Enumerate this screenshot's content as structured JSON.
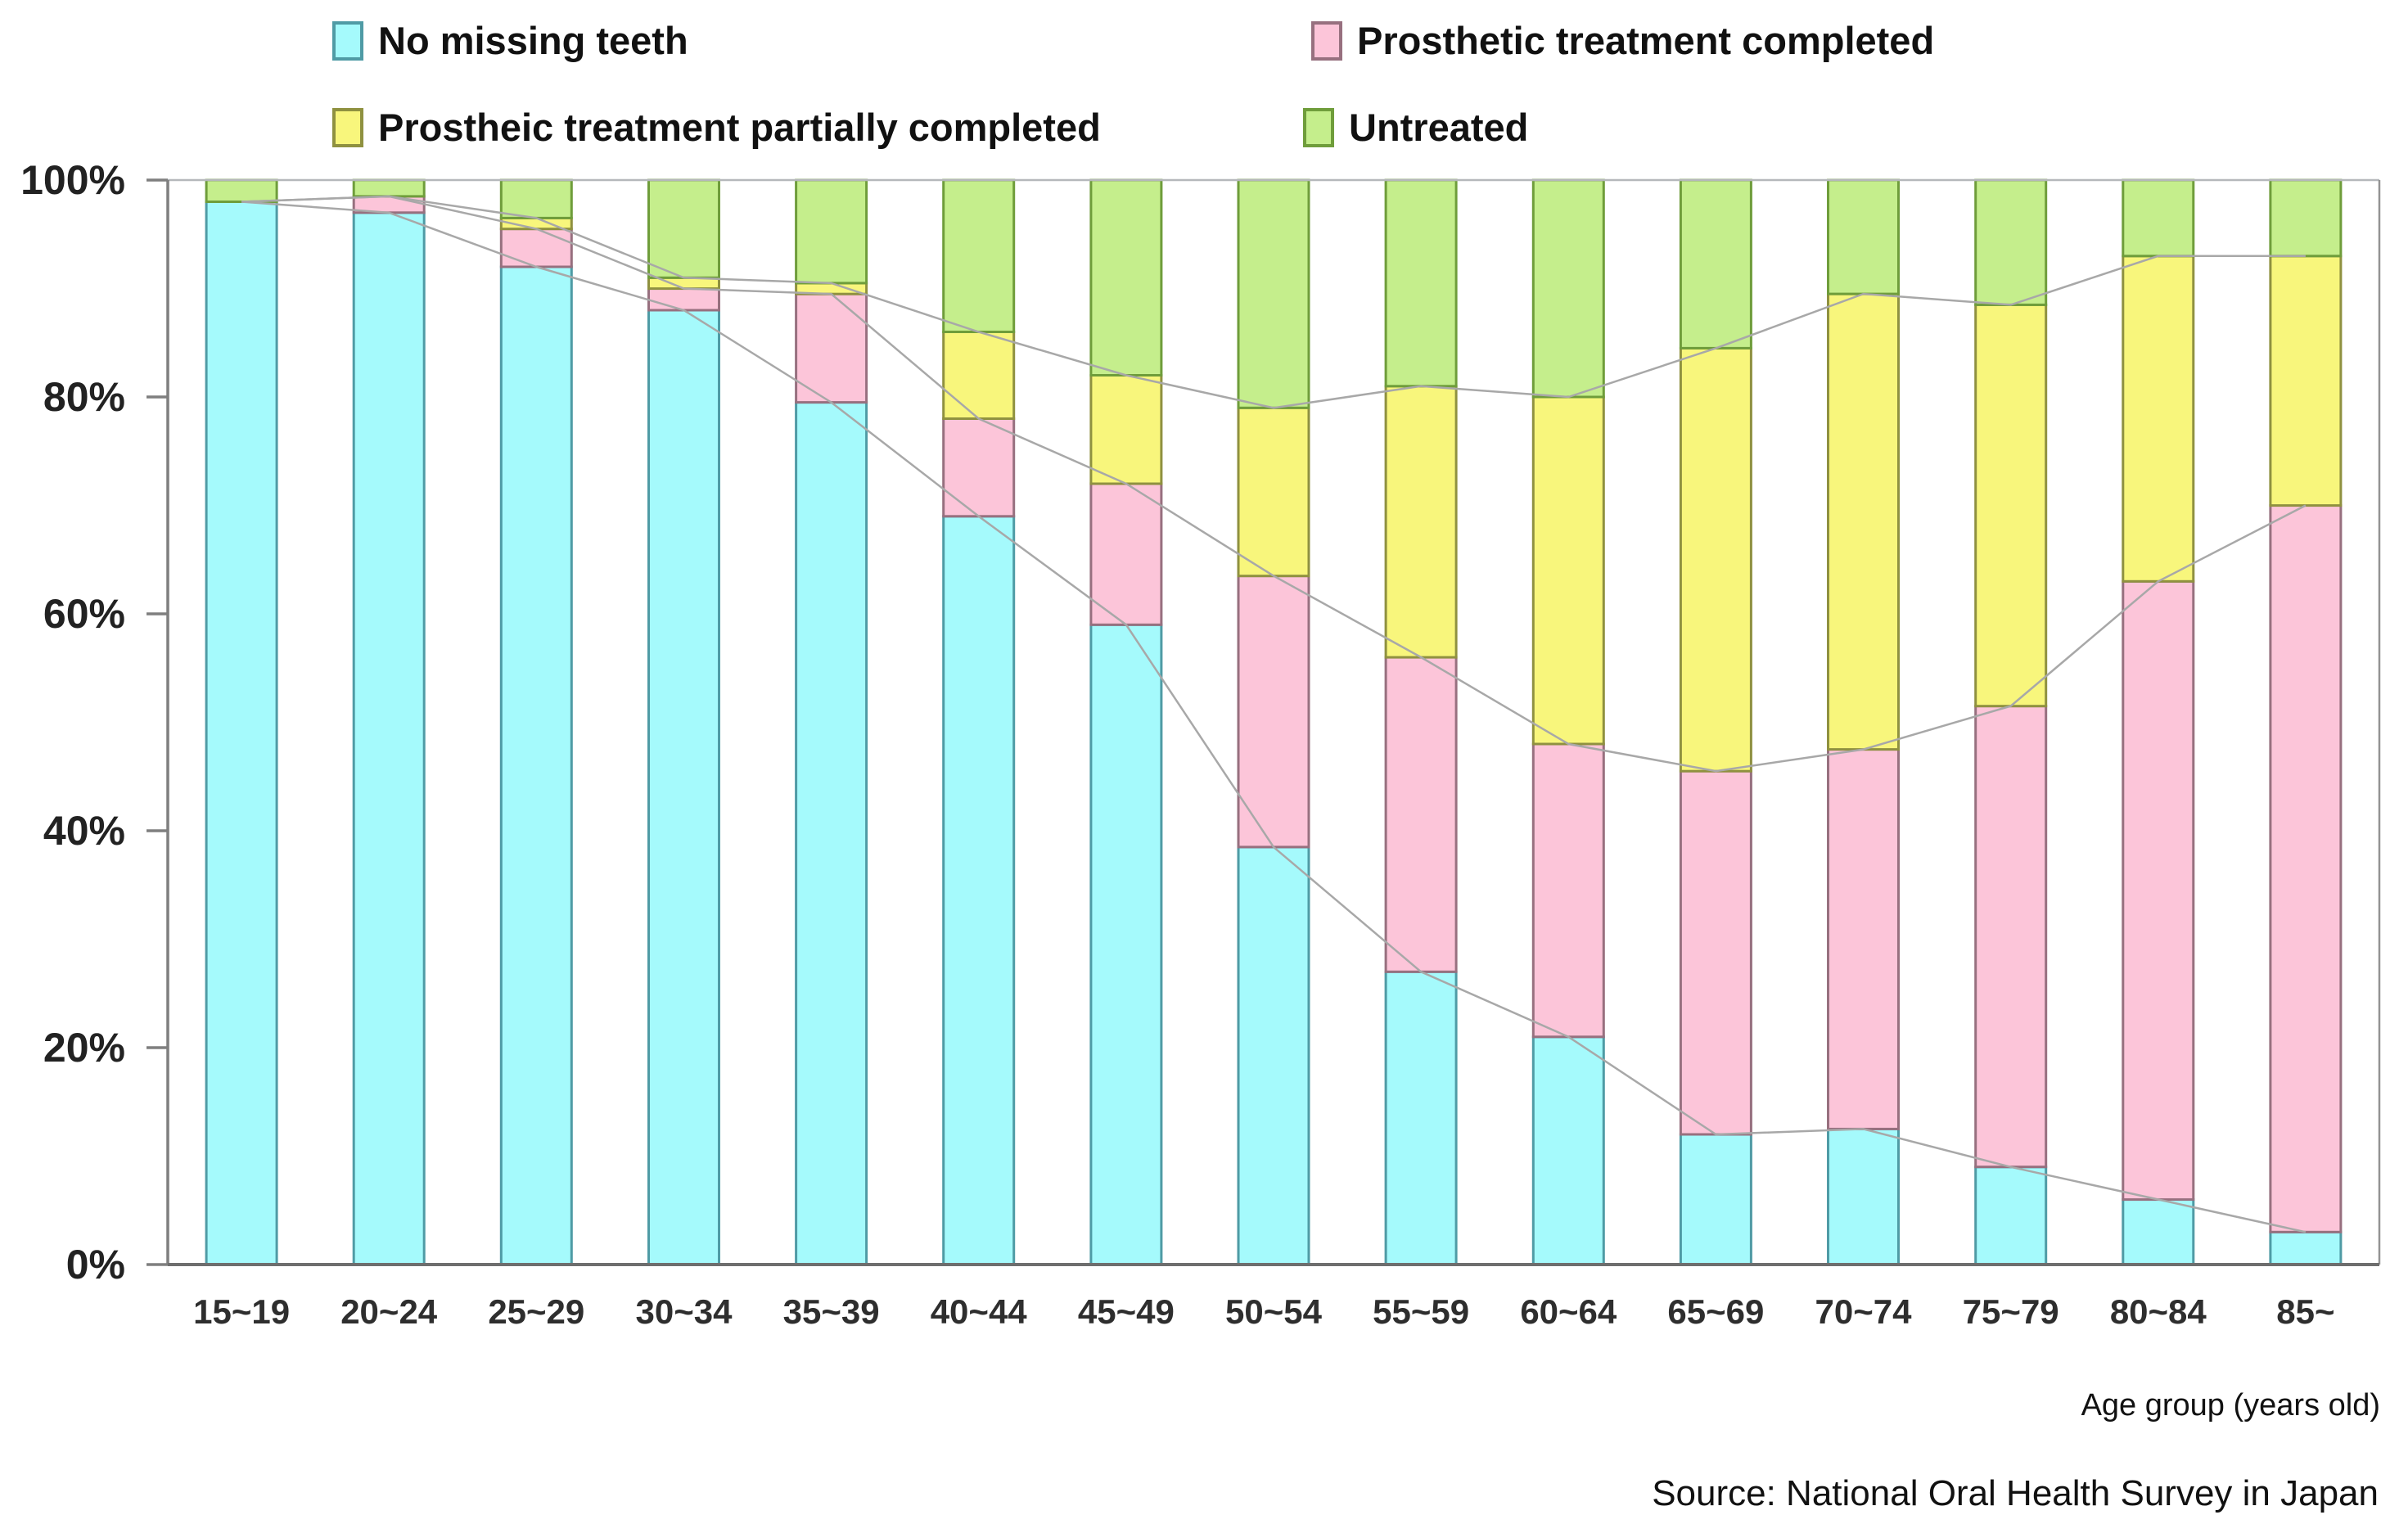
{
  "figure": {
    "background": "#ffffff",
    "text_color": "#111111",
    "axis_color": "#7f7f7f",
    "bottom_axis_color": "#6e6e6e",
    "frame_top_color": "#b5b8bb",
    "frame_right_color": "#939393",
    "connector_color": "#a8a8a8"
  },
  "chart_data": {
    "type": "bar",
    "stacked": true,
    "legend_position": "top",
    "grid": false,
    "connector_lines": true,
    "categories": [
      "15~19",
      "20~24",
      "25~29",
      "30~34",
      "35~39",
      "40~44",
      "45~49",
      "50~54",
      "55~59",
      "60~64",
      "65~69",
      "70~74",
      "75~79",
      "80~84",
      "85~"
    ],
    "series": [
      {
        "name": "No missing teeth",
        "color": "#a5fafc",
        "border": "#4f9ba5",
        "values": [
          98,
          97,
          92,
          88,
          79.5,
          69,
          59,
          38.5,
          27,
          21,
          12,
          12.5,
          9,
          6,
          3
        ]
      },
      {
        "name": "Prosthetic treatment completed",
        "color": "#fcc5d9",
        "border": "#97707f",
        "values": [
          0,
          1.5,
          3.5,
          2,
          10,
          9,
          13,
          25,
          29,
          27,
          33.5,
          35,
          42.5,
          57,
          67
        ]
      },
      {
        "name": "Prostheic treatment partially completed",
        "color": "#f8f67c",
        "border": "#8f9140",
        "values": [
          0,
          0,
          1,
          1,
          1,
          8,
          10,
          15.5,
          25,
          32,
          39,
          42,
          37,
          30,
          23
        ]
      },
      {
        "name": "Untreated",
        "color": "#c5ee8c",
        "border": "#6f9d3b",
        "values": [
          2,
          1.5,
          3.5,
          9,
          9.5,
          14,
          18,
          21,
          19,
          20,
          15.5,
          10.5,
          11.5,
          7,
          7
        ]
      }
    ],
    "ylim": [
      0,
      100
    ],
    "yticks": [
      {
        "value": 0,
        "label": "0%"
      },
      {
        "value": 20,
        "label": "20%"
      },
      {
        "value": 40,
        "label": "40%"
      },
      {
        "value": 60,
        "label": "60%"
      },
      {
        "value": 80,
        "label": "80%"
      },
      {
        "value": 100,
        "label": "100%"
      }
    ],
    "xlabel": "Age group (years old)",
    "source": "Source: National Oral Health Survey in Japan"
  }
}
